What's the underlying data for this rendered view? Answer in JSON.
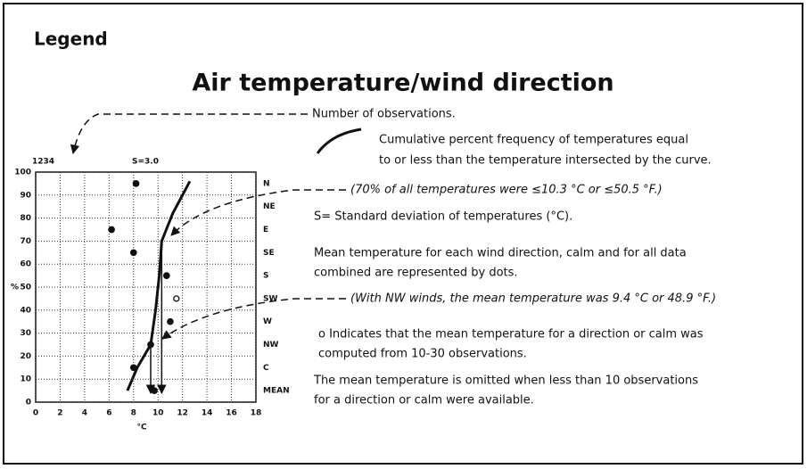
{
  "legend_title": "Legend",
  "title": "Air temperature/wind direction",
  "notes": {
    "observations": "Number of observations.",
    "curve": [
      "Cumulative percent frequency of temperatures equal",
      "to or less than the temperature intersected by the curve."
    ],
    "example_70": "(70% of all temperatures were ≤10.3 °C or ≤50.5 °F.)",
    "std_dev": "S= Standard deviation of temperatures (°C).",
    "dots": [
      "Mean temperature for each wind direction, calm and for all data",
      "combined are represented by dots."
    ],
    "example_nw": "(With NW winds, the mean temperature was 9.4 °C or 48.9 °F.)",
    "open_dot": [
      "o Indicates that the mean temperature for a direction or calm was",
      "computed from 10-30 observations."
    ],
    "omitted": [
      "The mean temperature is omitted when less than 10 observations",
      "for a direction or calm were available."
    ]
  },
  "chart_data": {
    "type": "cumulative",
    "observations_label": "1234",
    "std_label": "S=3.0",
    "ylabel": "%",
    "xlabel": "°C",
    "xlim": [
      0,
      18
    ],
    "ylim": [
      0,
      100
    ],
    "xticks": [
      0,
      2,
      4,
      6,
      8,
      10,
      12,
      14,
      16,
      18
    ],
    "yticks": [
      0,
      10,
      20,
      30,
      40,
      50,
      60,
      70,
      80,
      90,
      100
    ],
    "grid": true,
    "color": "#111111",
    "categories": [
      "N",
      "NE",
      "E",
      "SE",
      "S",
      "SW",
      "W",
      "NW",
      "C",
      "MEAN"
    ],
    "category_y": [
      95,
      85,
      75,
      65,
      55,
      45,
      35,
      25,
      15,
      5
    ],
    "open_categories": [
      "SW"
    ],
    "series": [
      {
        "values": [
          8.2,
          null,
          6.2,
          8.0,
          10.7,
          11.5,
          11.0,
          9.4,
          8.0,
          9.7
        ]
      }
    ],
    "curve": {
      "x": [
        7.5,
        8.3,
        9.4,
        9.8,
        10.1,
        10.3,
        11.2,
        12.6
      ],
      "y": [
        5,
        15,
        25,
        40,
        55,
        70,
        82,
        96
      ]
    }
  }
}
